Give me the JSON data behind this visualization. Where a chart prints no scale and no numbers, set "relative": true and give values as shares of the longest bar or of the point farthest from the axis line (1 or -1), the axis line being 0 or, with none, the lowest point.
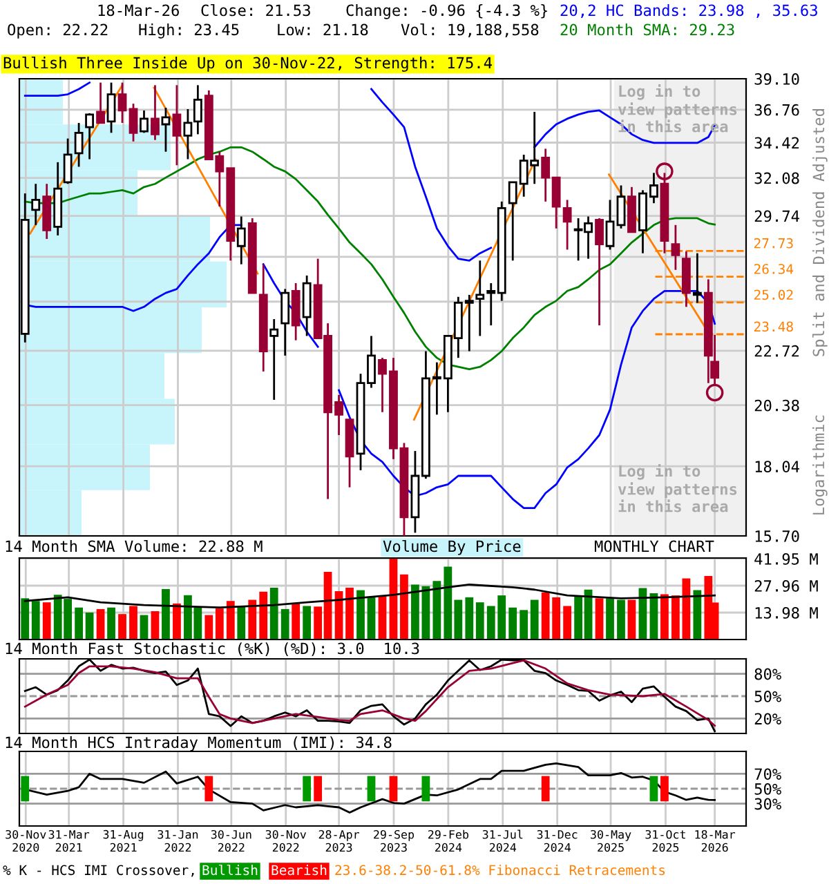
{
  "chart_data": [
    {
      "type": "candlestick",
      "log": true,
      "grid": true,
      "tick_labels": "y",
      "ylabel": "Split and Dividend Adjusted",
      "x": [
        "2020-11-28",
        "2020-12-28",
        "2021-01-28",
        "2021-02-28",
        "2021-03-28",
        "2021-04-28",
        "2021-05-28",
        "2021-06-28",
        "2021-07-28",
        "2021-08-28",
        "2021-09-28",
        "2021-10-28",
        "2021-11-28",
        "2021-12-28",
        "2022-01-28",
        "2022-02-28",
        "2022-03-28",
        "2022-04-28",
        "2022-05-28",
        "2022-06-28",
        "2022-07-28",
        "2022-08-28",
        "2022-09-28",
        "2022-10-28",
        "2022-11-28",
        "2022-12-28",
        "2023-01-28",
        "2023-02-28",
        "2023-03-28",
        "2023-04-28",
        "2023-05-28",
        "2023-06-28",
        "2023-07-28",
        "2023-08-28",
        "2023-09-28",
        "2023-10-28",
        "2023-11-28",
        "2023-12-28",
        "2024-01-28",
        "2024-02-28",
        "2024-03-28",
        "2024-04-28",
        "2024-05-28",
        "2024-06-28",
        "2024-07-28",
        "2024-08-28",
        "2024-09-28",
        "2024-10-28",
        "2024-11-28",
        "2024-12-28",
        "2025-01-28",
        "2025-02-28",
        "2025-03-28",
        "2025-04-28",
        "2025-05-28",
        "2025-06-28",
        "2025-07-28",
        "2025-08-28",
        "2025-09-28",
        "2025-10-28",
        "2025-11-28",
        "2025-12-28",
        "2026-01-28",
        "2026-02-28",
        "2026-03-18"
      ],
      "xlim": [
        "2020-11-12",
        "2026-06-14"
      ],
      "xticks": [
        "2020-11-30",
        "2021-03-31",
        "2021-08-31",
        "2022-01-31",
        "2022-06-30",
        "2022-11-30",
        "2023-04-28",
        "2023-09-29",
        "2024-02-29",
        "2024-07-31",
        "2024-12-31",
        "2025-05-30",
        "2025-10-31",
        "2026-03-18"
      ],
      "ylim": [
        15.7,
        39.1
      ],
      "yticks": [
        {
          "value": 15.7,
          "label": "15.70"
        },
        18.04,
        20.38,
        22.72,
        {
          "value": 25.06,
          "label": null
        },
        {
          "value": 27.4,
          "label": null
        },
        29.74,
        32.08,
        34.42,
        36.76,
        {
          "value": 39.1,
          "label": "39.10"
        }
      ],
      "ohlc": [
        [
          23.5,
          31.1,
          23.1,
          29.5
        ],
        [
          30.1,
          31.7,
          29.2,
          30.7
        ],
        [
          30.9,
          31.7,
          28.4,
          28.9
        ],
        [
          29.1,
          33.1,
          28.6,
          31.4
        ],
        [
          31.8,
          34.7,
          31.7,
          33.6
        ],
        [
          33.7,
          35.8,
          32.8,
          35.1
        ],
        [
          35.5,
          36.5,
          33.3,
          36.4
        ],
        [
          36.6,
          38.8,
          35.8,
          35.8
        ],
        [
          35.9,
          38.8,
          35.1,
          37.9
        ],
        [
          37.9,
          38.8,
          35.8,
          36.7
        ],
        [
          36.8,
          37.2,
          34.5,
          35.1
        ],
        [
          35.2,
          36.7,
          35.1,
          36.1
        ],
        [
          36.1,
          38.6,
          34.6,
          35.0
        ],
        [
          35.7,
          36.9,
          33.8,
          36.2
        ],
        [
          36.4,
          38.6,
          32.9,
          34.9
        ],
        [
          34.9,
          36.8,
          33.3,
          35.8
        ],
        [
          35.9,
          38.6,
          35.0,
          37.5
        ],
        [
          37.8,
          38.2,
          33.3,
          33.3
        ],
        [
          33.5,
          33.8,
          30.3,
          32.5
        ],
        [
          32.7,
          32.7,
          27.2,
          28.3
        ],
        [
          28.0,
          29.7,
          27.0,
          29.0
        ],
        [
          29.3,
          29.6,
          25.5,
          25.5
        ],
        [
          25.4,
          27.0,
          21.8,
          22.7
        ],
        [
          23.4,
          24.2,
          20.6,
          23.7
        ],
        [
          24.0,
          25.7,
          22.5,
          25.5
        ],
        [
          25.6,
          26.0,
          23.2,
          23.9
        ],
        [
          24.3,
          26.4,
          23.4,
          26.0
        ],
        [
          25.9,
          27.3,
          23.3,
          23.3
        ],
        [
          23.4,
          24.0,
          16.9,
          20.1
        ],
        [
          20.5,
          20.8,
          19.2,
          20.0
        ],
        [
          19.8,
          19.8,
          17.3,
          18.4
        ],
        [
          18.5,
          21.7,
          17.9,
          21.3
        ],
        [
          21.3,
          23.4,
          21.1,
          22.5
        ],
        [
          22.3,
          22.4,
          20.1,
          21.7
        ],
        [
          21.8,
          22.4,
          18.3,
          18.7
        ],
        [
          18.7,
          18.9,
          15.7,
          16.3
        ],
        [
          16.3,
          18.6,
          15.8,
          17.7
        ],
        [
          17.7,
          22.7,
          17.6,
          21.5
        ],
        [
          21.5,
          22.2,
          20.0,
          21.5
        ],
        [
          21.5,
          23.4,
          20.1,
          23.4
        ],
        [
          23.3,
          25.3,
          22.4,
          25.0
        ],
        [
          25.0,
          25.4,
          22.7,
          25.1
        ],
        [
          25.2,
          27.2,
          23.4,
          25.4
        ],
        [
          25.5,
          26.0,
          23.9,
          25.6
        ],
        [
          25.5,
          30.6,
          25.1,
          30.2
        ],
        [
          30.5,
          31.8,
          27.2,
          31.8
        ],
        [
          31.7,
          33.6,
          30.9,
          33.2
        ],
        [
          32.9,
          36.6,
          31.7,
          33.2
        ],
        [
          33.4,
          34.0,
          30.6,
          32.1
        ],
        [
          32.1,
          32.1,
          29.0,
          30.3
        ],
        [
          30.2,
          30.7,
          27.8,
          29.4
        ],
        [
          28.9,
          29.6,
          27.2,
          28.9
        ],
        [
          28.8,
          29.7,
          27.3,
          29.3
        ],
        [
          29.5,
          29.6,
          23.9,
          28.1
        ],
        [
          28.0,
          30.7,
          27.8,
          29.4
        ],
        [
          29.2,
          31.6,
          29.0,
          30.9
        ],
        [
          30.9,
          31.5,
          28.8,
          28.8
        ],
        [
          28.9,
          31.3,
          27.6,
          31.1
        ],
        [
          30.9,
          32.4,
          30.5,
          31.6
        ],
        [
          31.7,
          32.4,
          27.6,
          28.3
        ],
        [
          28.1,
          29.2,
          26.7,
          27.5
        ],
        [
          27.3,
          27.7,
          24.8,
          25.5
        ],
        [
          25.4,
          27.6,
          25.0,
          25.5
        ],
        [
          25.5,
          26.2,
          21.3,
          22.5
        ],
        [
          22.22,
          23.45,
          21.18,
          21.53
        ]
      ],
      "colors": [
        "#ffffff",
        "#ffffff",
        "#990033",
        "#ffffff",
        "#ffffff",
        "#ffffff",
        "#ffffff",
        "#990033",
        "#ffffff",
        "#990033",
        "#990033",
        "#ffffff",
        "#990033",
        "#ffffff",
        "#990033",
        "#ffffff",
        "#ffffff",
        "#990033",
        "#990033",
        "#990033",
        "#ffffff",
        "#990033",
        "#990033",
        "#ffffff",
        "#ffffff",
        "#990033",
        "#ffffff",
        "#990033",
        "#990033",
        "#990033",
        "#990033",
        "#ffffff",
        "#ffffff",
        "#990033",
        "#990033",
        "#990033",
        "#ffffff",
        "#ffffff",
        "#ffffff",
        "#ffffff",
        "#ffffff",
        "#ffffff",
        "#ffffff",
        "#ffffff",
        "#ffffff",
        "#ffffff",
        "#ffffff",
        "#ffffff",
        "#990033",
        "#990033",
        "#990033",
        "#ffffff",
        "#ffffff",
        "#990033",
        "#ffffff",
        "#ffffff",
        "#990033",
        "#ffffff",
        "#ffffff",
        "#990033",
        "#990033",
        "#990033",
        "#ffffff",
        "#990033",
        "#990033"
      ],
      "series": [
        {
          "type": "line",
          "color": "#0000ff",
          "values": [
            37.8,
            37.8,
            37.8,
            37.8,
            37.9,
            38.3,
            38.8,
            null,
            null,
            null,
            null,
            null,
            null,
            null,
            null,
            null,
            null,
            null,
            null,
            null,
            null,
            null,
            null,
            null,
            null,
            null,
            null,
            null,
            null,
            null,
            null,
            null,
            38.3,
            37.3,
            36.4,
            35.5,
            32.8,
            30.9,
            29.0,
            28.0,
            27.3,
            27.2,
            27.6,
            27.9,
            null,
            null,
            null,
            34.1,
            35.0,
            35.7,
            36.1,
            36.4,
            36.6,
            36.7,
            36.2,
            35.7,
            35.0,
            34.6,
            34.4,
            34.4,
            34.4,
            34.4,
            34.4,
            34.8,
            35.63
          ]
        },
        {
          "type": "line",
          "color": "#008000",
          "values": [
            30.6,
            30.5,
            30.5,
            30.5,
            30.7,
            30.9,
            31.1,
            31.1,
            31.2,
            31.3,
            31.1,
            31.5,
            31.7,
            32.1,
            32.5,
            32.9,
            33.3,
            33.6,
            33.8,
            34.1,
            34.1,
            33.8,
            33.3,
            32.8,
            32.5,
            32.0,
            31.3,
            30.6,
            29.8,
            29.0,
            28.2,
            27.6,
            27.0,
            26.2,
            25.3,
            24.5,
            23.6,
            22.9,
            22.4,
            22.1,
            22.0,
            21.9,
            22.0,
            22.3,
            22.7,
            23.3,
            23.8,
            24.4,
            24.8,
            25.1,
            25.6,
            25.8,
            26.2,
            26.7,
            27.0,
            27.6,
            28.2,
            28.7,
            29.2,
            29.5,
            29.6,
            29.6,
            29.6,
            29.3,
            29.23
          ]
        },
        {
          "type": "line",
          "color": "#0000ff",
          "values": [
            24.9,
            24.8,
            24.8,
            24.8,
            24.8,
            24.8,
            24.8,
            24.8,
            24.8,
            24.8,
            24.6,
            24.8,
            25.2,
            25.5,
            25.7,
            26.4,
            27.0,
            27.6,
            28.5,
            29.2,
            29.2,
            null,
            27.0,
            26.0,
            25.1,
            24.5,
            23.6,
            22.9,
            null,
            21.0,
            19.9,
            19.0,
            18.5,
            18.2,
            17.7,
            17.3,
            17.0,
            17.1,
            17.3,
            17.4,
            17.7,
            17.7,
            17.7,
            17.7,
            17.3,
            16.9,
            16.6,
            16.6,
            17.1,
            17.4,
            18.0,
            18.3,
            18.7,
            19.2,
            20.2,
            22.1,
            23.8,
            24.6,
            25.2,
            25.6,
            25.6,
            25.6,
            25.6,
            25.0,
            23.98
          ]
        },
        {
          "type": "line",
          "color": "#ff8000",
          "x": [
            "2020-12-12",
            "2021-08-28"
          ],
          "values": [
            28.7,
            38.6
          ]
        },
        {
          "type": "line",
          "color": "#ff8000",
          "x": [
            "2021-11-25",
            "2022-09-12"
          ],
          "values": [
            38.4,
            26.5
          ]
        },
        {
          "type": "line",
          "color": "#ff8000",
          "x": [
            "2023-11-25",
            "2024-10-31"
          ],
          "values": [
            19.8,
            33.3
          ]
        },
        {
          "type": "line",
          "color": "#ff8000",
          "x": [
            "2025-05-25",
            "2026-02-27"
          ],
          "values": [
            32.3,
            23.6
          ]
        },
        {
          "type": "scatter",
          "marker": "circle",
          "color": "#990033",
          "x": [
            "2025-10-28",
            "2026-03-18"
          ],
          "values": [
            32.5,
            20.9
          ]
        }
      ],
      "ref_lines": [
        {
          "axis": "y",
          "value": 27.73,
          "label": "27.73",
          "color": "#ff8000",
          "line_style": "dashed"
        },
        {
          "axis": "y",
          "value": 26.34,
          "label": "26.34",
          "color": "#ff8000",
          "line_style": "dashed"
        },
        {
          "axis": "y",
          "value": 25.02,
          "label": "25.02",
          "color": "#ff8000",
          "line_style": "dashed"
        },
        {
          "axis": "y",
          "value": 23.48,
          "label": "23.48",
          "color": "#ff8000",
          "line_style": "dashed"
        }
      ],
      "bands": [
        {
          "axis": "x",
          "from": "2025-06-08",
          "to": "2026-06-14",
          "color": "#f0f0f0"
        }
      ],
      "annotations": [
        "18-Mar-26",
        "Close: 21.53",
        "Change: -0.96 {-4.3 %}",
        "Open: 22.22",
        "High: 23.45",
        "Low: 21.18",
        "Vol: 19,188,558",
        "20,2 HC Bands: 23.98 , 35.63",
        "20 Month SMA: 29.23",
        "Bullish Three Inside Up on 30-Nov-22, Strength: 175.4",
        "Log in to\nview patterns\nin this area",
        "Log in to\nview patterns\nin this area",
        "Logarithmic",
        "23.6-38.2-50-61.8% Fibonacci Retracements"
      ]
    },
    {
      "type": "bar",
      "orientation": "horizontal",
      "relative": true,
      "tick_labels": false,
      "color": "#c8f4fc",
      "categories": [
        null,
        null,
        null,
        null,
        null,
        null,
        null,
        null,
        null,
        null
      ],
      "values": [
        0.21,
        0.73,
        0.57,
        0.92,
        1,
        0.88,
        0.7,
        0.75,
        0.63,
        0.3
      ]
    },
    {
      "type": "bar",
      "grid": true,
      "tick_labels": "y",
      "title": "14 Month SMA Volume: 22.88 M",
      "x": [
        "2020-11-28",
        "2020-12-28",
        "2021-01-28",
        "2021-02-28",
        "2021-03-28",
        "2021-04-28",
        "2021-05-28",
        "2021-06-28",
        "2021-07-28",
        "2021-08-28",
        "2021-09-28",
        "2021-10-28",
        "2021-11-28",
        "2021-12-28",
        "2022-01-28",
        "2022-02-28",
        "2022-03-28",
        "2022-04-28",
        "2022-05-28",
        "2022-06-28",
        "2022-07-28",
        "2022-08-28",
        "2022-09-28",
        "2022-10-28",
        "2022-11-28",
        "2022-12-28",
        "2023-01-28",
        "2023-02-28",
        "2023-03-28",
        "2023-04-28",
        "2023-05-28",
        "2023-06-28",
        "2023-07-28",
        "2023-08-28",
        "2023-09-28",
        "2023-10-28",
        "2023-11-28",
        "2023-12-28",
        "2024-01-28",
        "2024-02-28",
        "2024-03-28",
        "2024-04-28",
        "2024-05-28",
        "2024-06-28",
        "2024-07-28",
        "2024-08-28",
        "2024-09-28",
        "2024-10-28",
        "2024-11-28",
        "2024-12-28",
        "2025-01-28",
        "2025-02-28",
        "2025-03-28",
        "2025-04-28",
        "2025-05-28",
        "2025-06-28",
        "2025-07-28",
        "2025-08-28",
        "2025-09-28",
        "2025-10-28",
        "2025-11-28",
        "2025-12-28",
        "2026-01-28",
        "2026-02-28",
        "2026-03-18"
      ],
      "xlim": [
        "2020-11-12",
        "2026-06-14"
      ],
      "xticks": [
        "2020-11-30",
        "2021-03-31",
        "2021-08-31",
        "2022-01-31",
        "2022-06-30",
        "2022-11-30",
        "2023-04-28",
        "2023-09-29",
        "2024-02-29",
        "2024-07-31",
        "2024-12-31",
        "2025-05-30",
        "2025-10-31",
        "2026-03-18"
      ],
      "ylim": [
        0,
        42.3
      ],
      "yticks": [
        {
          "value": 13.98,
          "label": "13.98 M"
        },
        {
          "value": 27.96,
          "label": "27.96 M"
        },
        {
          "value": 41.95,
          "label": "41.95 M"
        }
      ],
      "series": [
        {
          "type": "bar",
          "colors": [
            "#008000",
            "#008000",
            "#ff0000",
            "#008000",
            "#008000",
            "#008000",
            "#008000",
            "#ff0000",
            "#008000",
            "#ff0000",
            "#ff0000",
            "#008000",
            "#ff0000",
            "#008000",
            "#ff0000",
            "#008000",
            "#008000",
            "#ff0000",
            "#ff0000",
            "#ff0000",
            "#008000",
            "#ff0000",
            "#ff0000",
            "#008000",
            "#008000",
            "#ff0000",
            "#008000",
            "#ff0000",
            "#ff0000",
            "#ff0000",
            "#ff0000",
            "#008000",
            "#008000",
            "#ff0000",
            "#ff0000",
            "#ff0000",
            "#008000",
            "#008000",
            "#008000",
            "#008000",
            "#008000",
            "#008000",
            "#008000",
            "#008000",
            "#008000",
            "#008000",
            "#008000",
            "#008000",
            "#ff0000",
            "#ff0000",
            "#ff0000",
            "#008000",
            "#008000",
            "#ff0000",
            "#008000",
            "#008000",
            "#ff0000",
            "#008000",
            "#008000",
            "#ff0000",
            "#ff0000",
            "#ff0000",
            "#008000",
            "#ff0000",
            "#ff0000"
          ],
          "values": [
            21.4,
            20.0,
            19.3,
            23.2,
            21.1,
            16.6,
            14.0,
            15.8,
            16.6,
            13.2,
            17.4,
            12.7,
            14.7,
            26.2,
            18.7,
            23.0,
            16.6,
            12.7,
            16.1,
            20.0,
            17.1,
            20.6,
            24.8,
            26.9,
            15.8,
            18.7,
            17.4,
            17.1,
            35.1,
            25.1,
            26.9,
            25.6,
            21.9,
            22.5,
            41.9,
            33.8,
            28.5,
            27.7,
            30.4,
            37.8,
            20.6,
            21.9,
            19.3,
            17.4,
            22.9,
            16.6,
            15.3,
            20.6,
            24.5,
            21.9,
            17.4,
            22.9,
            25.9,
            21.4,
            21.4,
            20.6,
            20.6,
            26.7,
            24.0,
            23.5,
            22.9,
            31.7,
            25.6,
            33.0,
            19.19
          ]
        },
        {
          "type": "line",
          "color": "#000000",
          "x": [
            "2020-11-28",
            "2021-03-28",
            "2021-06-28",
            "2021-10-28",
            "2022-05-28",
            "2022-10-28",
            "2023-01-28",
            "2023-04-28",
            "2023-09-28",
            "2024-02-28",
            "2024-04-28",
            "2024-08-28",
            "2024-10-28",
            "2025-01-28",
            "2025-06-28",
            "2025-10-28",
            "2026-03-18"
          ],
          "values": [
            20.0,
            21.9,
            19.3,
            17.9,
            16.6,
            17.9,
            19.3,
            20.6,
            23.2,
            27.1,
            28.5,
            27.1,
            25.9,
            22.9,
            21.4,
            21.9,
            22.88
          ]
        }
      ],
      "annotations": [
        "Volume By Price",
        "MONTHLY CHART"
      ]
    },
    {
      "type": "line",
      "grid": "x",
      "tick_labels": "y",
      "title": "14 Month Fast Stochastic (%K) (%D): 3.0  10.3",
      "x": [
        "2020-11-28",
        "2020-12-28",
        "2021-01-28",
        "2021-02-28",
        "2021-03-28",
        "2021-04-28",
        "2021-05-28",
        "2021-06-28",
        "2021-07-28",
        "2021-08-28",
        "2021-09-28",
        "2021-10-28",
        "2021-11-28",
        "2021-12-28",
        "2022-01-28",
        "2022-02-28",
        "2022-03-28",
        "2022-04-28",
        "2022-05-28",
        "2022-06-28",
        "2022-07-28",
        "2022-08-28",
        "2022-09-28",
        "2022-10-28",
        "2022-11-28",
        "2022-12-28",
        "2023-01-28",
        "2023-02-28",
        "2023-03-28",
        "2023-04-28",
        "2023-05-28",
        "2023-06-28",
        "2023-07-28",
        "2023-08-28",
        "2023-09-28",
        "2023-10-28",
        "2023-11-28",
        "2023-12-28",
        "2024-01-28",
        "2024-02-28",
        "2024-03-28",
        "2024-04-28",
        "2024-05-28",
        "2024-06-28",
        "2024-07-28",
        "2024-08-28",
        "2024-09-28",
        "2024-10-28",
        "2024-11-28",
        "2024-12-28",
        "2025-01-28",
        "2025-02-28",
        "2025-03-28",
        "2025-04-28",
        "2025-05-28",
        "2025-06-28",
        "2025-07-28",
        "2025-08-28",
        "2025-09-28",
        "2025-10-28",
        "2025-11-28",
        "2025-12-28",
        "2026-01-28",
        "2026-02-28",
        "2026-03-18"
      ],
      "xlim": [
        "2020-11-12",
        "2026-06-14"
      ],
      "xticks": [
        "2020-11-30",
        "2021-03-31",
        "2021-08-31",
        "2022-01-31",
        "2022-06-30",
        "2022-11-30",
        "2023-04-28",
        "2023-09-29",
        "2024-02-29",
        "2024-07-31",
        "2024-12-31",
        "2025-05-30",
        "2025-10-31",
        "2026-03-18"
      ],
      "ylim": [
        0,
        100
      ],
      "yticks": [
        {
          "value": 20,
          "label": "20%"
        },
        {
          "value": 50,
          "label": "50%"
        },
        {
          "value": 80,
          "label": "80%"
        }
      ],
      "ref_lines": [
        {
          "axis": "y",
          "value": 20,
          "color": "#999999",
          "line_style": "solid"
        },
        {
          "axis": "y",
          "value": 50,
          "color": "#999999",
          "line_style": "dashed"
        },
        {
          "axis": "y",
          "value": 80,
          "color": "#999999",
          "line_style": "solid"
        }
      ],
      "series": [
        {
          "color": "#000000",
          "values": [
            57,
            62,
            52,
            58,
            71,
            90,
            99,
            84,
            92,
            87,
            88,
            84,
            81,
            83,
            65,
            71,
            87,
            26,
            23,
            10,
            23,
            14,
            17,
            23,
            28,
            23,
            31,
            17,
            17,
            16,
            14,
            31,
            37,
            39,
            23,
            12,
            20,
            39,
            52,
            71,
            84,
            98,
            85,
            90,
            99,
            98,
            98,
            84,
            81,
            71,
            65,
            58,
            57,
            44,
            51,
            56,
            42,
            60,
            63,
            49,
            36,
            30,
            18,
            20,
            3.0
          ]
        },
        {
          "color": "#990033",
          "x": [
            "2020-11-28",
            "2021-01-28",
            "2021-03-28",
            "2021-04-28",
            "2021-05-28",
            "2021-07-28",
            "2021-09-28",
            "2021-11-28",
            "2022-01-28",
            "2022-03-28",
            "2022-04-28",
            "2022-05-28",
            "2022-06-28",
            "2022-08-28",
            "2022-10-28",
            "2022-12-28",
            "2023-02-28",
            "2023-04-28",
            "2023-05-28",
            "2023-06-28",
            "2023-08-28",
            "2023-10-28",
            "2023-11-28",
            "2023-12-28",
            "2024-02-28",
            "2024-04-28",
            "2024-06-28",
            "2024-09-28",
            "2024-11-28",
            "2025-01-28",
            "2025-03-28",
            "2025-05-28",
            "2025-08-28",
            "2025-10-28",
            "2025-12-28",
            "2026-02-28",
            "2026-03-18"
          ],
          "values": [
            36,
            52,
            65,
            81,
            90,
            90,
            87,
            82,
            74,
            74,
            49,
            26,
            20,
            14,
            20,
            26,
            22,
            18,
            17,
            26,
            31,
            20,
            17,
            30,
            62,
            84,
            87,
            98,
            87,
            67,
            58,
            52,
            50,
            53,
            36,
            18,
            10.3
          ]
        }
      ]
    },
    {
      "type": "line",
      "grid": "x",
      "legend": "bottom",
      "title": "14 Month HCS Intraday Momentum (IMI): 34.8",
      "xlim": [
        "2020-11-12",
        "2026-06-14"
      ],
      "xticks": [
        {
          "value": "2020-11-30",
          "label": "30-Nov\n2020"
        },
        {
          "value": "2021-03-31",
          "label": "31-Mar\n2021"
        },
        {
          "value": "2021-08-31",
          "label": "31-Aug\n2021"
        },
        {
          "value": "2022-01-31",
          "label": "31-Jan\n2022"
        },
        {
          "value": "2022-06-30",
          "label": "30-Jun\n2022"
        },
        {
          "value": "2022-11-30",
          "label": "30-Nov\n2022"
        },
        {
          "value": "2023-04-28",
          "label": "28-Apr\n2023"
        },
        {
          "value": "2023-09-29",
          "label": "29-Sep\n2023"
        },
        {
          "value": "2024-02-29",
          "label": "29-Feb\n2024"
        },
        {
          "value": "2024-07-31",
          "label": "31-Jul\n2024"
        },
        {
          "value": "2024-12-31",
          "label": "31-Dec\n2024"
        },
        {
          "value": "2025-05-30",
          "label": "30-May\n2025"
        },
        {
          "value": "2025-10-31",
          "label": "31-Oct\n2025"
        },
        {
          "value": "2026-03-18",
          "label": "18-Mar\n2026"
        }
      ],
      "ylim": [
        0,
        100
      ],
      "yticks": [
        {
          "value": 30,
          "label": "30%"
        },
        {
          "value": 50,
          "label": "50%"
        },
        {
          "value": 70,
          "label": "70%"
        }
      ],
      "ref_lines": [
        {
          "axis": "y",
          "value": 30,
          "color": "#999999",
          "line_style": "solid"
        },
        {
          "axis": "y",
          "value": 50,
          "color": "#999999",
          "line_style": "dashed"
        },
        {
          "axis": "y",
          "value": 70,
          "color": "#999999",
          "line_style": "solid"
        }
      ],
      "series": [
        {
          "type": "line",
          "color": "#000000",
          "x": [
            "2020-11-28",
            "2021-01-28",
            "2021-03-28",
            "2021-04-28",
            "2021-05-28",
            "2021-06-28",
            "2021-08-28",
            "2021-10-28",
            "2021-12-28",
            "2022-01-28",
            "2022-03-28",
            "2022-04-28",
            "2022-06-28",
            "2022-08-28",
            "2022-09-28",
            "2022-11-28",
            "2022-12-28",
            "2023-02-28",
            "2023-04-28",
            "2023-05-28",
            "2023-06-28",
            "2023-08-28",
            "2023-09-28",
            "2023-10-28",
            "2023-12-28",
            "2024-01-28",
            "2024-03-28",
            "2024-05-28",
            "2024-06-28",
            "2024-07-28",
            "2024-09-28",
            "2024-11-28",
            "2024-12-28",
            "2025-02-28",
            "2025-03-28",
            "2025-05-28",
            "2025-06-28",
            "2025-07-28",
            "2025-08-28",
            "2025-09-28",
            "2025-10-28",
            "2025-11-28",
            "2025-12-28",
            "2026-01-28",
            "2026-02-28",
            "2026-03-18"
          ],
          "values": [
            49,
            42,
            47,
            52,
            70,
            63,
            63,
            58,
            73,
            57,
            66,
            49,
            32,
            30,
            21,
            28,
            25,
            28,
            25,
            18,
            25,
            36,
            31,
            30,
            42,
            41,
            49,
            63,
            63,
            74,
            74,
            82,
            84,
            79,
            68,
            68,
            71,
            65,
            66,
            61,
            46,
            41,
            35,
            38,
            35,
            34.8
          ]
        },
        {
          "type": "bar",
          "name": "Bullish",
          "color": "#009900",
          "x": [
            "2020-11-28",
            "2023-01-28",
            "2023-07-28",
            "2023-12-28",
            "2025-09-28"
          ],
          "base": [
            33,
            33,
            33,
            33,
            33
          ],
          "values": [
            34,
            34,
            34,
            34,
            34
          ]
        },
        {
          "type": "bar",
          "name": "Bearish",
          "color": "#ff0000",
          "x": [
            "2022-04-28",
            "2023-02-28",
            "2023-09-28",
            "2024-11-28",
            "2025-10-28"
          ],
          "base": [
            33,
            33,
            33,
            33,
            33
          ],
          "values": [
            34,
            34,
            34,
            34,
            34
          ]
        }
      ],
      "annotations": [
        "% K - HCS IMI Crossover,"
      ]
    }
  ]
}
